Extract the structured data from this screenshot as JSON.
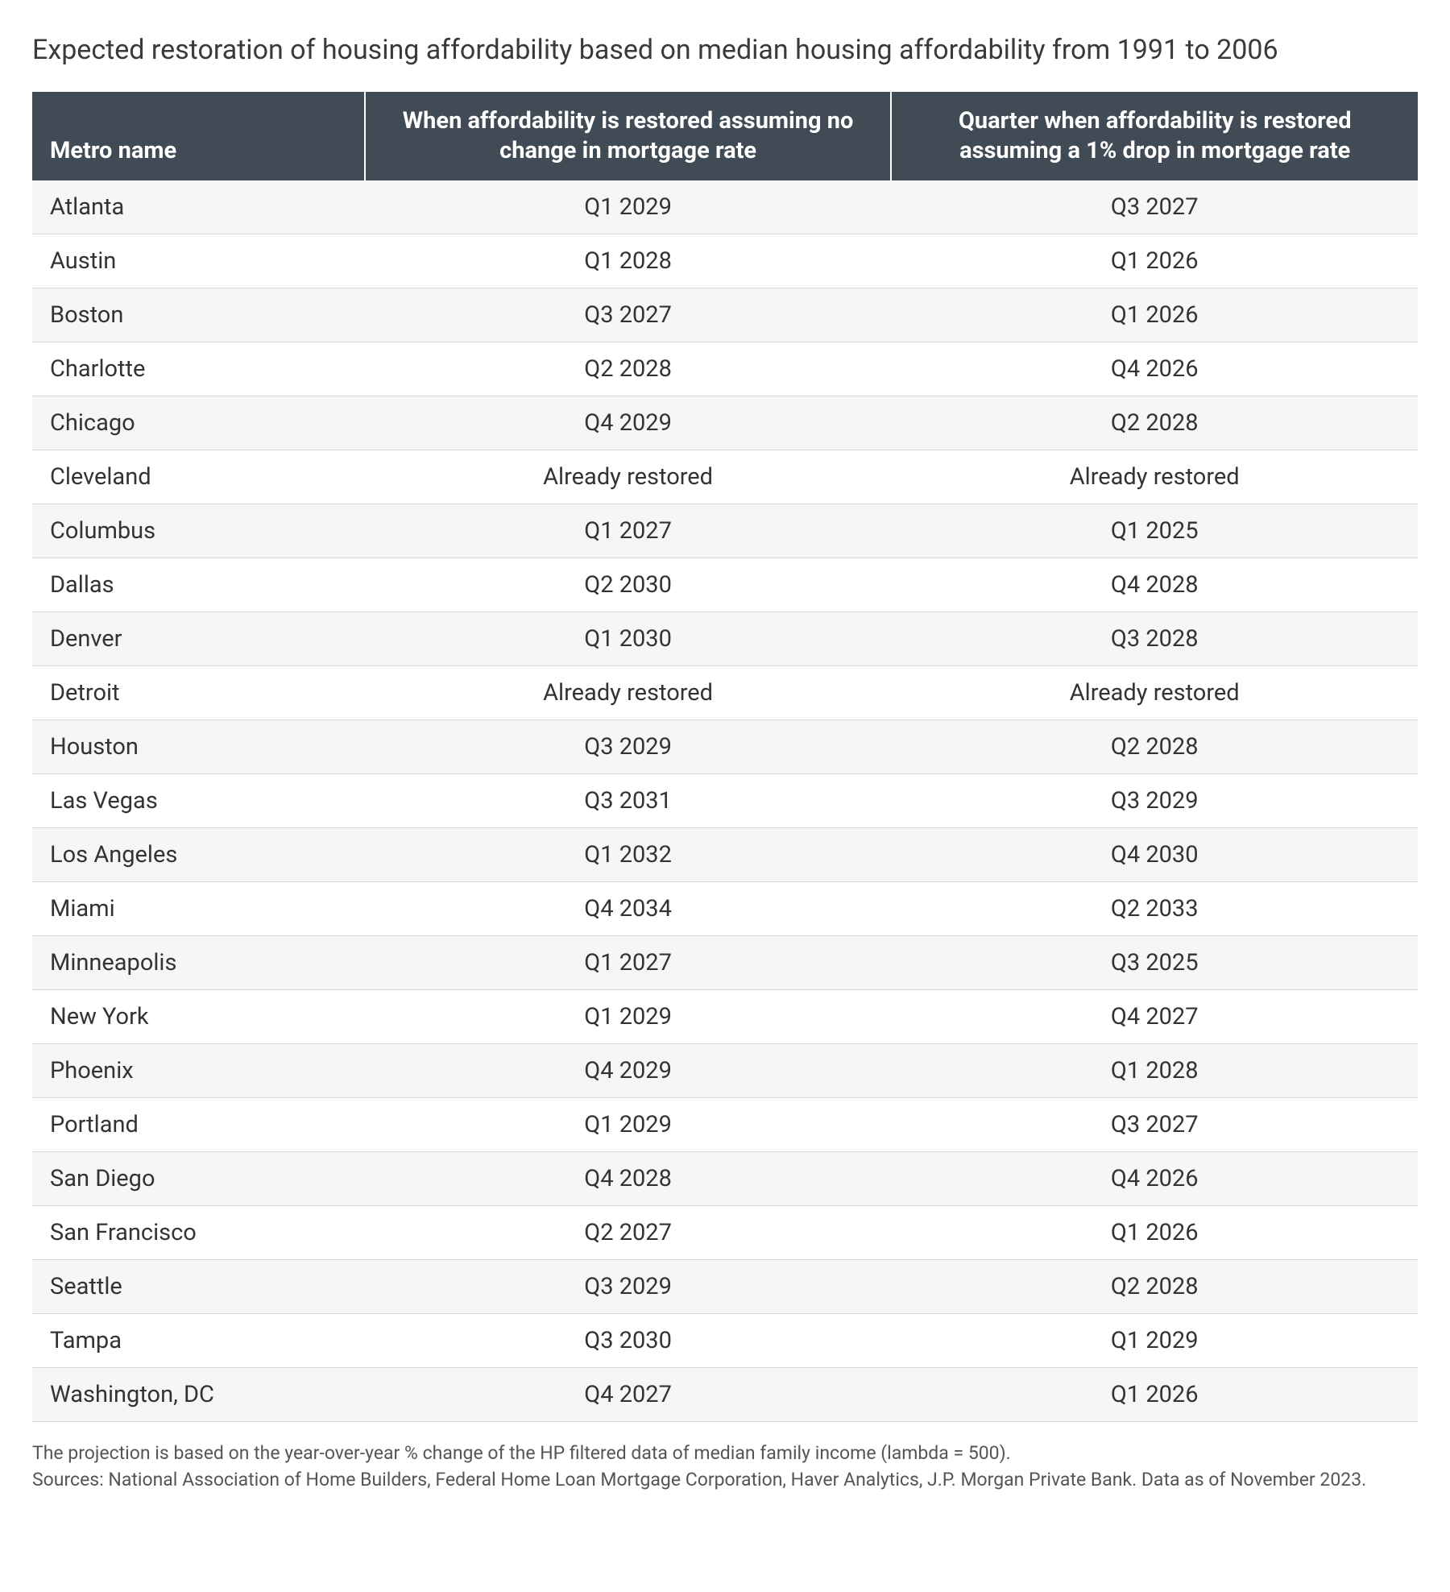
{
  "title": "Expected restoration of housing affordability based on median housing affordability from 1991 to 2006",
  "table": {
    "columns": {
      "metro": "Metro name",
      "no_change": "When affordability is restored assuming no change in mortgage rate",
      "drop_1pct": "Quarter when affordability is restored assuming a 1% drop in mortgage rate"
    },
    "rows": [
      {
        "metro": "Atlanta",
        "no_change": "Q1 2029",
        "drop_1pct": "Q3 2027"
      },
      {
        "metro": "Austin",
        "no_change": "Q1 2028",
        "drop_1pct": "Q1 2026"
      },
      {
        "metro": "Boston",
        "no_change": "Q3 2027",
        "drop_1pct": "Q1 2026"
      },
      {
        "metro": "Charlotte",
        "no_change": "Q2 2028",
        "drop_1pct": "Q4 2026"
      },
      {
        "metro": "Chicago",
        "no_change": "Q4 2029",
        "drop_1pct": "Q2 2028"
      },
      {
        "metro": "Cleveland",
        "no_change": "Already restored",
        "drop_1pct": "Already restored"
      },
      {
        "metro": "Columbus",
        "no_change": "Q1 2027",
        "drop_1pct": "Q1 2025"
      },
      {
        "metro": "Dallas",
        "no_change": "Q2 2030",
        "drop_1pct": "Q4 2028"
      },
      {
        "metro": "Denver",
        "no_change": "Q1 2030",
        "drop_1pct": "Q3 2028"
      },
      {
        "metro": "Detroit",
        "no_change": "Already restored",
        "drop_1pct": "Already restored"
      },
      {
        "metro": "Houston",
        "no_change": "Q3 2029",
        "drop_1pct": "Q2 2028"
      },
      {
        "metro": "Las Vegas",
        "no_change": "Q3 2031",
        "drop_1pct": "Q3 2029"
      },
      {
        "metro": "Los Angeles",
        "no_change": "Q1 2032",
        "drop_1pct": "Q4 2030"
      },
      {
        "metro": "Miami",
        "no_change": "Q4 2034",
        "drop_1pct": "Q2 2033"
      },
      {
        "metro": "Minneapolis",
        "no_change": "Q1 2027",
        "drop_1pct": "Q3 2025"
      },
      {
        "metro": "New York",
        "no_change": "Q1 2029",
        "drop_1pct": "Q4 2027"
      },
      {
        "metro": "Phoenix",
        "no_change": "Q4 2029",
        "drop_1pct": "Q1 2028"
      },
      {
        "metro": "Portland",
        "no_change": "Q1 2029",
        "drop_1pct": "Q3 2027"
      },
      {
        "metro": "San Diego",
        "no_change": "Q4 2028",
        "drop_1pct": "Q4 2026"
      },
      {
        "metro": "San Francisco",
        "no_change": "Q2 2027",
        "drop_1pct": "Q1 2026"
      },
      {
        "metro": "Seattle",
        "no_change": "Q3 2029",
        "drop_1pct": "Q2 2028"
      },
      {
        "metro": "Tampa",
        "no_change": "Q3 2030",
        "drop_1pct": "Q1 2029"
      },
      {
        "metro": "Washington, DC",
        "no_change": "Q4 2027",
        "drop_1pct": "Q1 2026"
      }
    ],
    "styling": {
      "header_bg": "#414b56",
      "header_text_color": "#ffffff",
      "row_alt_bg": "#f5f6f8",
      "row_bg": "#ffffff",
      "border_color": "#d7d9db",
      "title_fontsize": 34,
      "header_fontsize": 29,
      "cell_fontsize": 29,
      "footnote_fontsize": 23
    }
  },
  "footnote": {
    "line1": "The projection is based on the year-over-year % change of the HP filtered data of median family income (lambda = 500).",
    "line2": "Sources: National Association of Home Builders, Federal Home Loan Mortgage Corporation, Haver Analytics, J.P. Morgan Private Bank. Data as of November 2023."
  }
}
